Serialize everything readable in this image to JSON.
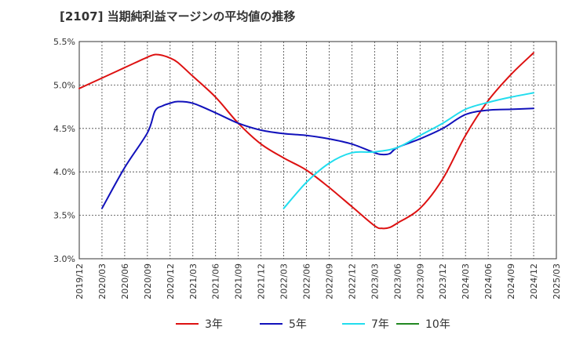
{
  "title": "[2107]  当期純利益マージンの平均値の推移",
  "chart_data": {
    "type": "line",
    "title": "[2107]  当期純利益マージンの平均値の推移",
    "xlabel": "",
    "ylabel": "",
    "x_ticks": [
      "2019/12",
      "2020/03",
      "2020/06",
      "2020/09",
      "2020/12",
      "2021/03",
      "2021/06",
      "2021/09",
      "2021/12",
      "2022/03",
      "2022/06",
      "2022/09",
      "2022/12",
      "2023/03",
      "2023/06",
      "2023/09",
      "2023/12",
      "2024/03",
      "2024/06",
      "2024/09",
      "2024/12",
      "2025/03"
    ],
    "y_ticks": [
      "3.0%",
      "3.5%",
      "4.0%",
      "4.5%",
      "5.0%",
      "5.5%"
    ],
    "ylim": [
      3.0,
      5.5
    ],
    "grid": true,
    "legend_position": "bottom",
    "series": [
      {
        "name": "3年",
        "color": "#dd1111",
        "x": [
          "2019/12",
          "2020/03",
          "2020/06",
          "2020/09",
          "2020/10",
          "2020/11",
          "2020/12",
          "2021/01",
          "2021/03",
          "2021/06",
          "2021/09",
          "2021/12",
          "2022/03",
          "2022/06",
          "2022/09",
          "2022/12",
          "2023/03",
          "2023/04",
          "2023/05",
          "2023/06",
          "2023/09",
          "2023/12",
          "2024/03",
          "2024/06",
          "2024/09",
          "2024/12"
        ],
        "values": [
          4.96,
          5.08,
          5.2,
          5.32,
          5.35,
          5.34,
          5.31,
          5.26,
          5.1,
          4.86,
          4.56,
          4.32,
          4.16,
          4.02,
          3.82,
          3.6,
          3.38,
          3.35,
          3.36,
          3.41,
          3.58,
          3.92,
          4.42,
          4.82,
          5.12,
          5.37
        ]
      },
      {
        "name": "5年",
        "color": "#1111bb",
        "x": [
          "2020/03",
          "2020/06",
          "2020/09",
          "2020/10",
          "2020/11",
          "2020/12",
          "2021/01",
          "2021/03",
          "2021/06",
          "2021/09",
          "2021/12",
          "2022/03",
          "2022/06",
          "2022/09",
          "2022/12",
          "2023/03",
          "2023/04",
          "2023/05",
          "2023/06",
          "2023/09",
          "2023/12",
          "2024/03",
          "2024/06",
          "2024/09",
          "2024/12"
        ],
        "values": [
          3.58,
          4.05,
          4.45,
          4.7,
          4.76,
          4.79,
          4.81,
          4.79,
          4.68,
          4.56,
          4.48,
          4.44,
          4.42,
          4.38,
          4.32,
          4.22,
          4.2,
          4.21,
          4.28,
          4.38,
          4.5,
          4.66,
          4.71,
          4.72,
          4.73
        ]
      },
      {
        "name": "7年",
        "color": "#22ddee",
        "x": [
          "2022/03",
          "2022/06",
          "2022/09",
          "2022/12",
          "2023/03",
          "2023/06",
          "2023/09",
          "2023/12",
          "2024/03",
          "2024/06",
          "2024/09",
          "2024/12"
        ],
        "values": [
          3.58,
          3.88,
          4.1,
          4.22,
          4.23,
          4.28,
          4.42,
          4.56,
          4.72,
          4.8,
          4.86,
          4.91
        ]
      },
      {
        "name": "10年",
        "color": "#228822",
        "x": [],
        "values": []
      }
    ]
  }
}
